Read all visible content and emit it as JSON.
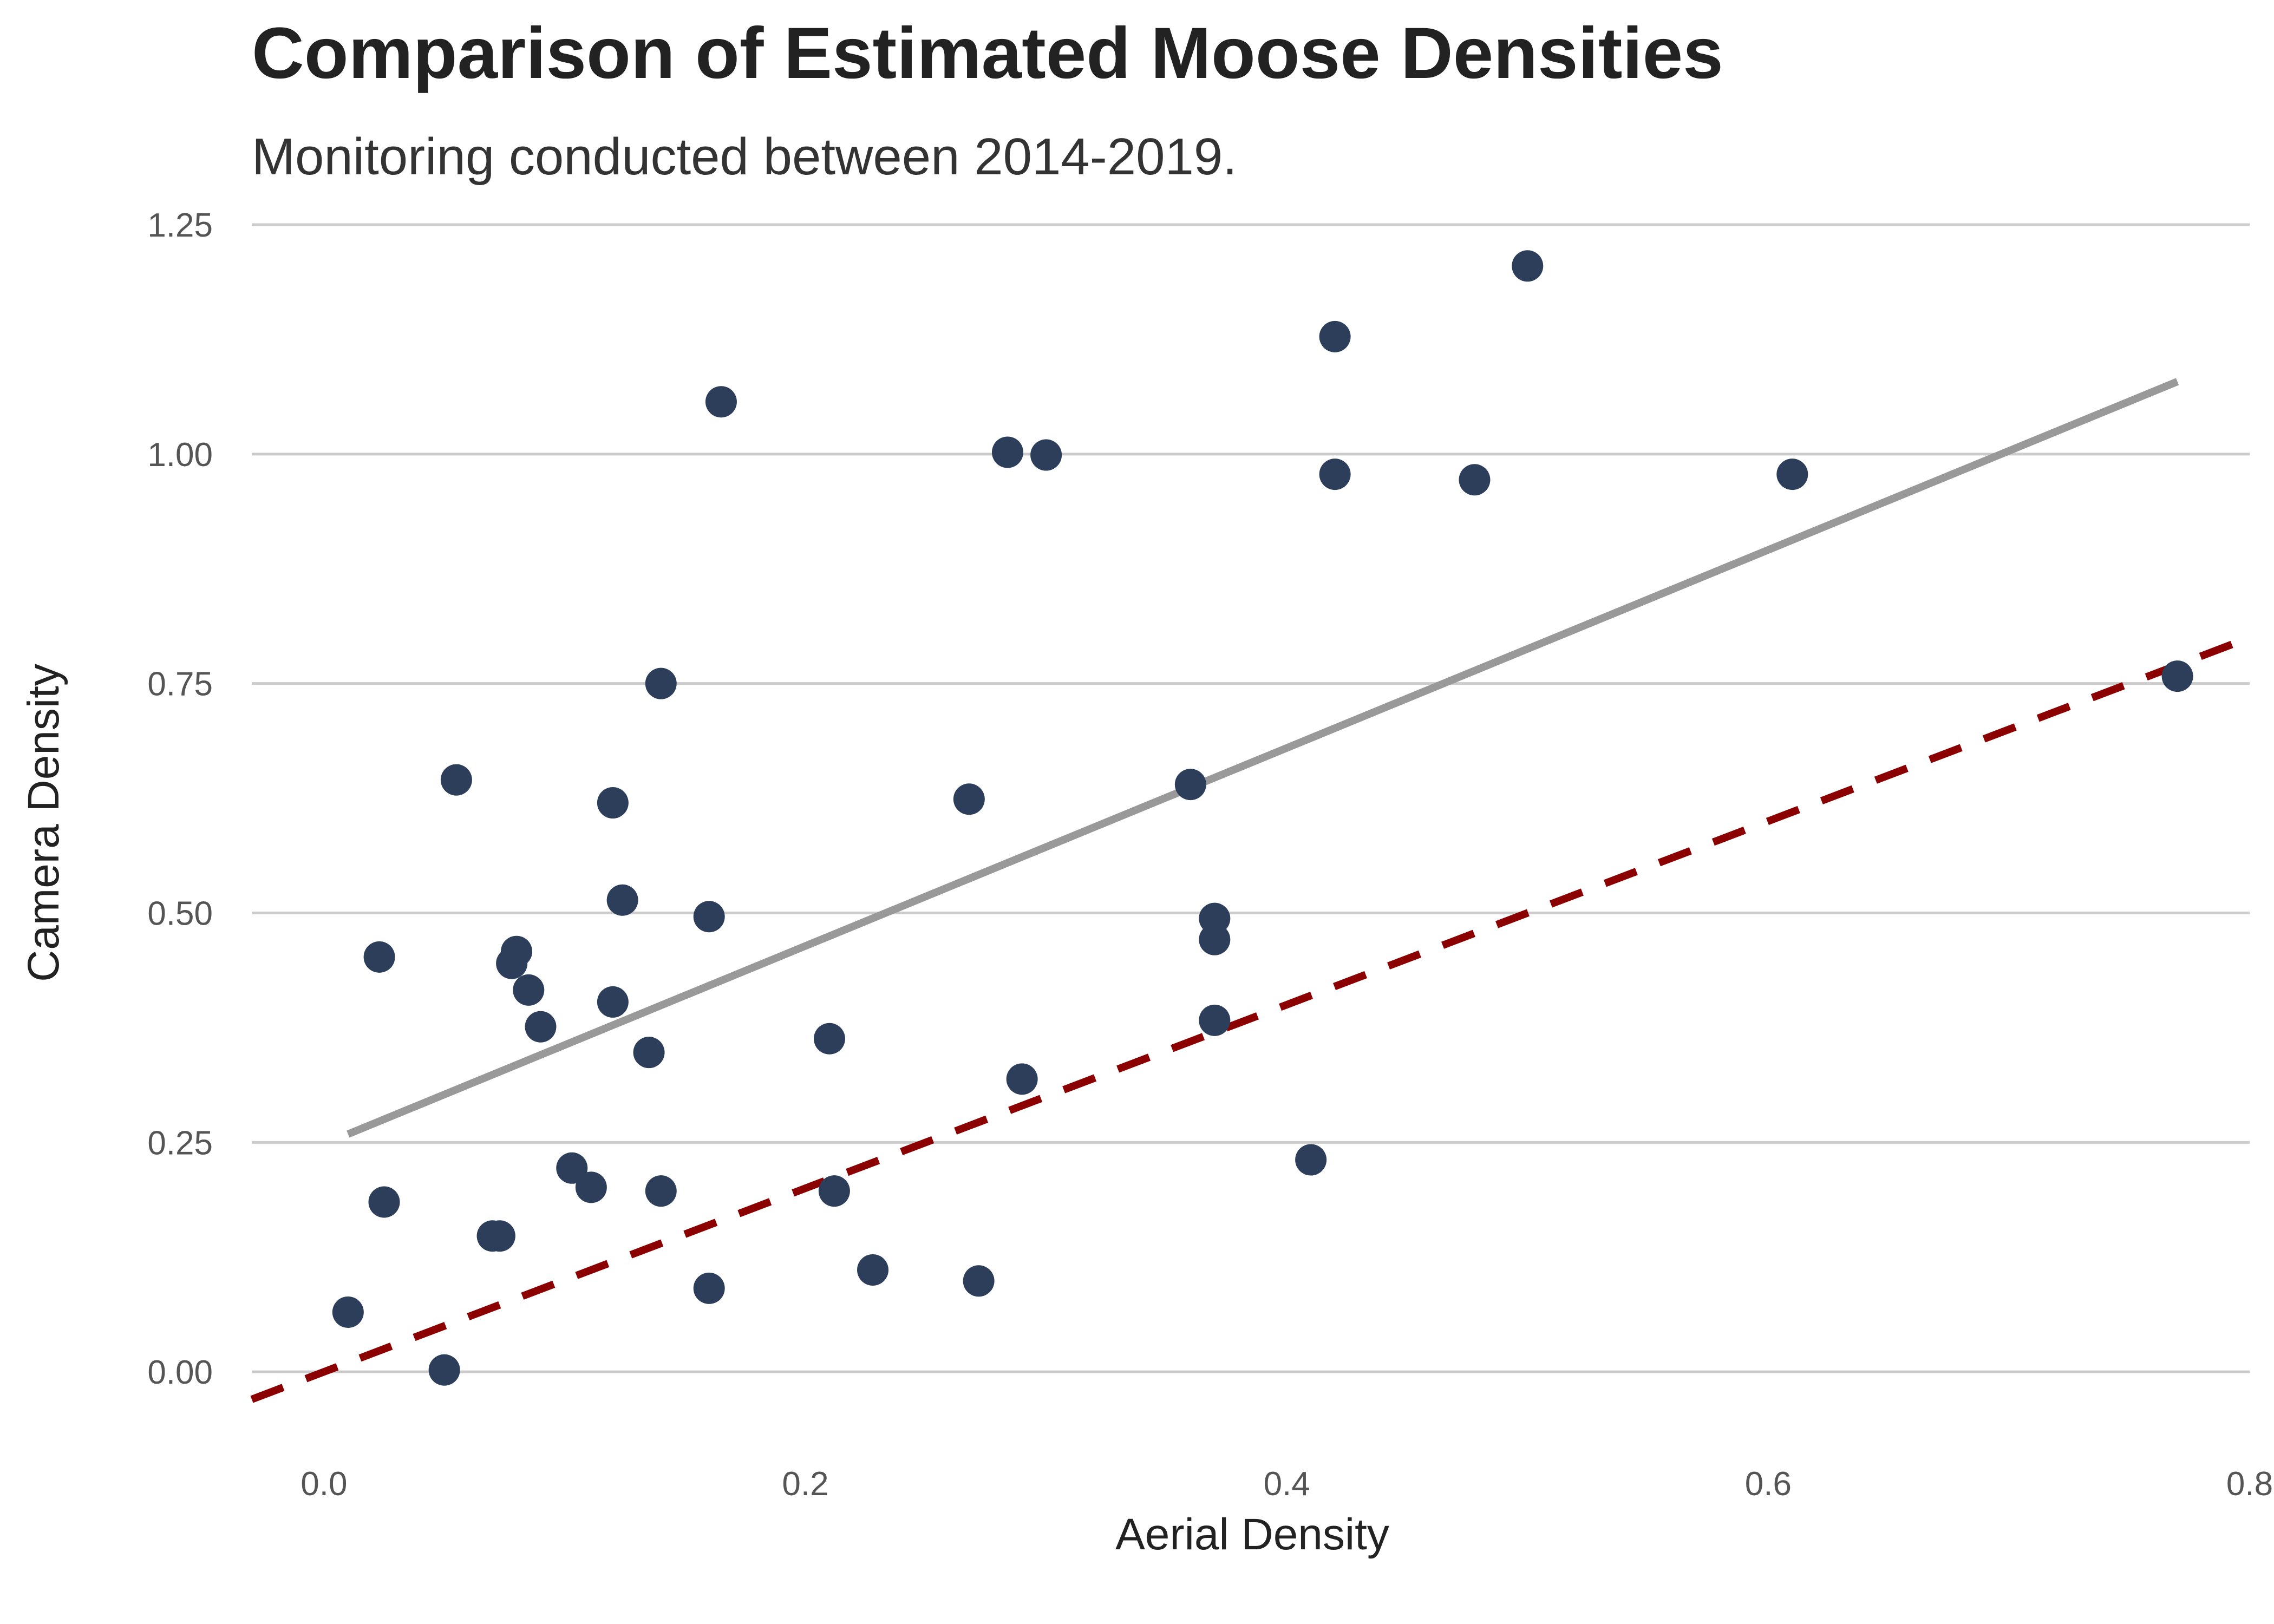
{
  "chart_data": {
    "type": "scatter",
    "title": "Comparison of Estimated Moose Densities",
    "subtitle": "Monitoring conducted between 2014-2019.",
    "xlabel": "Aerial Density",
    "ylabel": "Camera Density",
    "xlim": [
      -0.03,
      0.8
    ],
    "ylim": [
      -0.03,
      1.25
    ],
    "x_ticks": [
      0.0,
      0.2,
      0.4,
      0.6,
      0.8
    ],
    "x_tick_labels": [
      "0.0",
      "0.2",
      "0.4",
      "0.6",
      "0.8"
    ],
    "y_ticks": [
      0.0,
      0.25,
      0.5,
      0.75,
      1.0,
      1.25
    ],
    "y_tick_labels": [
      "0.00",
      "0.25",
      "0.50",
      "0.75",
      "1.00",
      "1.25"
    ],
    "grid": "horizontal major",
    "legend": "none",
    "colors": {
      "points": "#2c3e5a",
      "fit_line": "#999999",
      "identity_line": "#8b0000",
      "grid": "#cccccc"
    },
    "points": {
      "x": [
        0.01,
        0.023,
        0.025,
        0.05,
        0.055,
        0.07,
        0.073,
        0.078,
        0.08,
        0.085,
        0.09,
        0.103,
        0.111,
        0.12,
        0.12,
        0.124,
        0.135,
        0.14,
        0.14,
        0.16,
        0.16,
        0.165,
        0.21,
        0.212,
        0.228,
        0.268,
        0.272,
        0.284,
        0.29,
        0.3,
        0.36,
        0.37,
        0.37,
        0.37,
        0.41,
        0.42,
        0.42,
        0.478,
        0.5,
        0.61,
        0.77
      ],
      "y": [
        0.065,
        0.452,
        0.185,
        0.002,
        0.645,
        0.148,
        0.148,
        0.445,
        0.458,
        0.416,
        0.376,
        0.222,
        0.201,
        0.62,
        0.403,
        0.514,
        0.348,
        0.75,
        0.197,
        0.091,
        0.496,
        1.057,
        0.363,
        0.197,
        0.111,
        0.624,
        0.099,
        1.002,
        0.319,
        0.999,
        0.64,
        0.494,
        0.471,
        0.383,
        0.231,
        1.128,
        0.978,
        0.972,
        1.205,
        0.978,
        0.758
      ]
    },
    "fit_line": {
      "type": "linear regression",
      "x": [
        0.01,
        0.77
      ],
      "y": [
        0.259,
        1.079
      ]
    },
    "identity_line": {
      "type": "y = x",
      "style": "dashed",
      "x": [
        -0.03,
        0.8
      ],
      "y": [
        -0.03,
        0.8
      ]
    }
  }
}
